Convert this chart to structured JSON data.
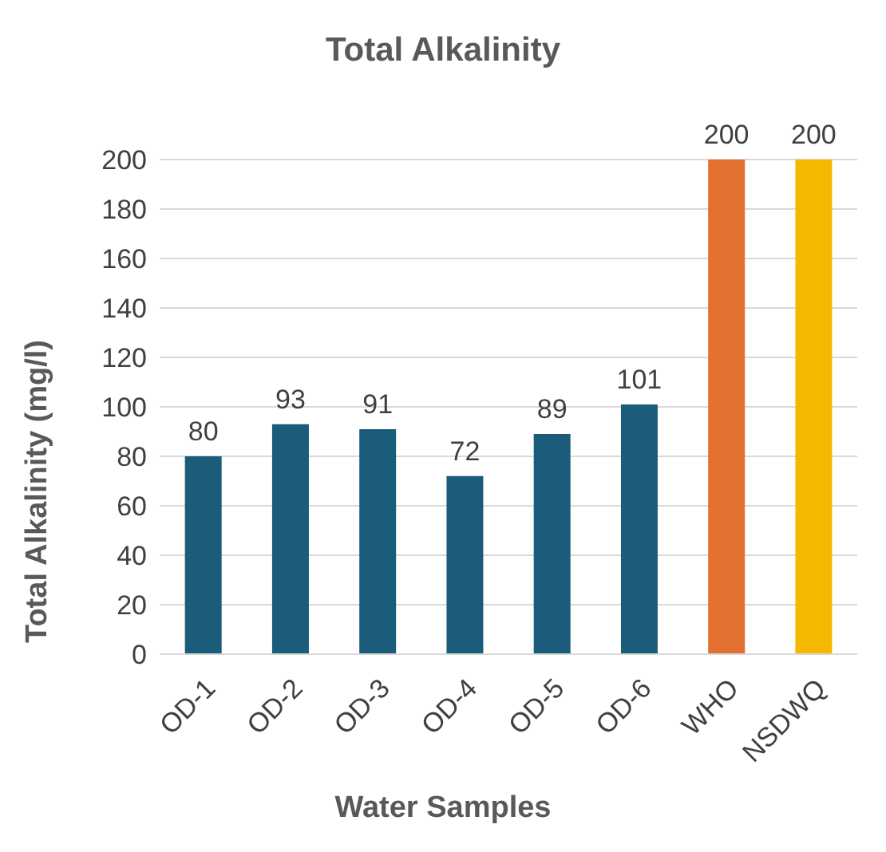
{
  "chart_data": {
    "type": "bar",
    "title": "Total Alkalinity",
    "xlabel": "Water Samples",
    "ylabel": "Total Alkalinity (mg/l)",
    "categories": [
      "OD-1",
      "OD-2",
      "OD-3",
      "OD-4",
      "OD-5",
      "OD-6",
      "WHO",
      "NSDWQ"
    ],
    "values": [
      80,
      93,
      91,
      72,
      89,
      101,
      200,
      200
    ],
    "colors": [
      "#1b5c7a",
      "#1b5c7a",
      "#1b5c7a",
      "#1b5c7a",
      "#1b5c7a",
      "#1b5c7a",
      "#e2712f",
      "#f5b800"
    ],
    "ylim": [
      0,
      200
    ],
    "yticks": [
      0,
      20,
      40,
      60,
      80,
      100,
      120,
      140,
      160,
      180,
      200
    ],
    "grid": "y",
    "data_labels": true
  }
}
